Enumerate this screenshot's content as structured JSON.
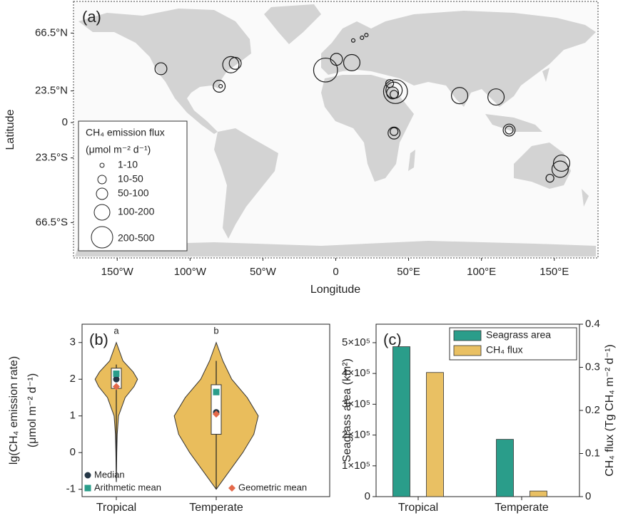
{
  "chart_data": [
    {
      "type": "bubble_map",
      "panel_label": "(a)",
      "xlabel": "Longitude",
      "ylabel": "Latitude",
      "xlim": [
        -180,
        180
      ],
      "ylim": [
        -90,
        90
      ],
      "xticks": [
        {
          "value": -150,
          "label": "150°W"
        },
        {
          "value": -100,
          "label": "100°W"
        },
        {
          "value": -50,
          "label": "50°W"
        },
        0,
        {
          "value": 50,
          "label": "50°E"
        },
        {
          "value": 100,
          "label": "100°E"
        },
        {
          "value": 150,
          "label": "150°E"
        }
      ],
      "yticks": [
        {
          "value": 66.5,
          "label": "66.5°N"
        },
        {
          "value": 23.5,
          "label": "23.5°N"
        },
        0,
        {
          "value": -23.5,
          "label": "23.5°S"
        },
        {
          "value": -66.5,
          "label": "66.5°S"
        }
      ],
      "legend_title": "CH₄ emission flux",
      "legend_unit": "(μmol m⁻² d⁻¹)",
      "size_classes": [
        "1-10",
        "10-50",
        "50-100",
        "100-200",
        "200-500"
      ],
      "x": [
        -120,
        -72,
        -69,
        -80,
        -79,
        -7,
        0.5,
        11,
        12,
        18,
        21,
        37,
        40,
        41,
        39,
        40,
        40,
        40,
        85,
        110,
        119,
        119,
        155,
        154,
        147
      ],
      "y": [
        40,
        43,
        44,
        27,
        27,
        39,
        47,
        44.5,
        61,
        63,
        65,
        29,
        24,
        23,
        22,
        21,
        -7,
        -6,
        20,
        19,
        -5,
        -5,
        -27,
        -31,
        -37
      ],
      "sizes": [
        75,
        150,
        75,
        75,
        5,
        350,
        75,
        150,
        5,
        5,
        5,
        30,
        150,
        350,
        75,
        30,
        75,
        30,
        150,
        150,
        75,
        30,
        150,
        150,
        30
      ]
    },
    {
      "type": "violin",
      "panel_label": "(b)",
      "ylabel": "lg(CH₄ emission rate)",
      "ylabel2": "(μmol m⁻² d⁻¹)",
      "categories": [
        "Tropical",
        "Temperate"
      ],
      "annotations": [
        "a",
        "b"
      ],
      "ylim": [
        -1.2,
        3.5
      ],
      "yticks": [
        -1,
        0,
        1,
        2,
        3
      ],
      "color": "#e9bd5c",
      "legend": "lower left",
      "density": [
        {
          "y": [
            -0.8,
            0,
            0.5,
            1,
            1.5,
            1.8,
            2,
            2.2,
            2.5,
            3
          ],
          "values": [
            0,
            0.01,
            0.02,
            0.05,
            0.2,
            0.4,
            0.48,
            0.38,
            0.15,
            0
          ]
        },
        {
          "y": [
            -1,
            -0.5,
            0,
            0.5,
            1,
            1.5,
            2,
            2.5,
            3
          ],
          "values": [
            0,
            0.3,
            0.6,
            0.85,
            0.95,
            0.7,
            0.35,
            0.15,
            0
          ]
        }
      ],
      "box": {
        "q1": [
          1.75,
          0.5
        ],
        "q3": [
          2.3,
          1.85
        ],
        "whisker_low": [
          -0.8,
          -1.0
        ],
        "whisker_high": [
          2.4,
          2.5
        ]
      },
      "series": [
        {
          "name": "Median",
          "color": "#253746",
          "values": [
            2.0,
            1.1
          ]
        },
        {
          "name": "Arithmetic mean",
          "color": "#2a9d8a",
          "values": [
            2.15,
            1.65
          ]
        },
        {
          "name": "Geometric mean",
          "color": "#e4694a",
          "values": [
            1.8,
            1.05
          ]
        }
      ]
    },
    {
      "type": "bar",
      "panel_label": "(c)",
      "categories": [
        "Tropical",
        "Temperate"
      ],
      "ylabel": "Seagrass area (km²)",
      "y2label": "CH₄ flux (Tg CH₄ m⁻² d⁻¹)",
      "ylim": [
        0,
        560000
      ],
      "yticks": [
        0,
        {
          "value": 100000,
          "label": "1×10⁵"
        },
        {
          "value": 200000,
          "label": "2×10⁵"
        },
        {
          "value": 300000,
          "label": "3×10⁵"
        },
        {
          "value": 400000,
          "label": "4×10⁵"
        },
        {
          "value": 500000,
          "label": "5×10⁵"
        }
      ],
      "y2lim": [
        0,
        0.4
      ],
      "y2ticks": [
        0,
        0.1,
        0.2,
        0.3,
        0.4
      ],
      "legend": "upper right",
      "series": [
        {
          "name": "Seagrass area",
          "color": "#2a9d8a",
          "values": [
            487000,
            186000
          ]
        },
        {
          "name": "CH₄ flux",
          "color": "#e9c063",
          "values": [
            0.288,
            0.013
          ],
          "axis": "y2"
        }
      ]
    }
  ]
}
